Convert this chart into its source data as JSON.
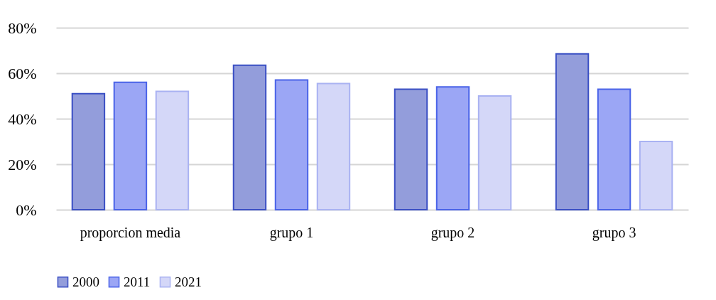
{
  "chart_data": {
    "type": "bar",
    "categories": [
      "proporcion media",
      "grupo 1",
      "grupo 2",
      "grupo 3"
    ],
    "series": [
      {
        "name": "2000",
        "color": "#939ddb",
        "values": [
          51,
          63.5,
          53,
          68.5
        ]
      },
      {
        "name": "2011",
        "color": "#9ba6f5",
        "values": [
          56,
          57,
          54,
          53
        ]
      },
      {
        "name": "2021",
        "color": "#d4d7f8",
        "values": [
          52,
          55.5,
          50,
          30
        ]
      }
    ],
    "ylim": [
      0,
      80
    ],
    "yticks": [
      {
        "value": 0,
        "label": "0%"
      },
      {
        "value": 20,
        "label": "20%"
      },
      {
        "value": 40,
        "label": "40%"
      },
      {
        "value": 60,
        "label": "60%"
      },
      {
        "value": 80,
        "label": "80%"
      }
    ],
    "grid": "y",
    "legend": "bottom"
  }
}
